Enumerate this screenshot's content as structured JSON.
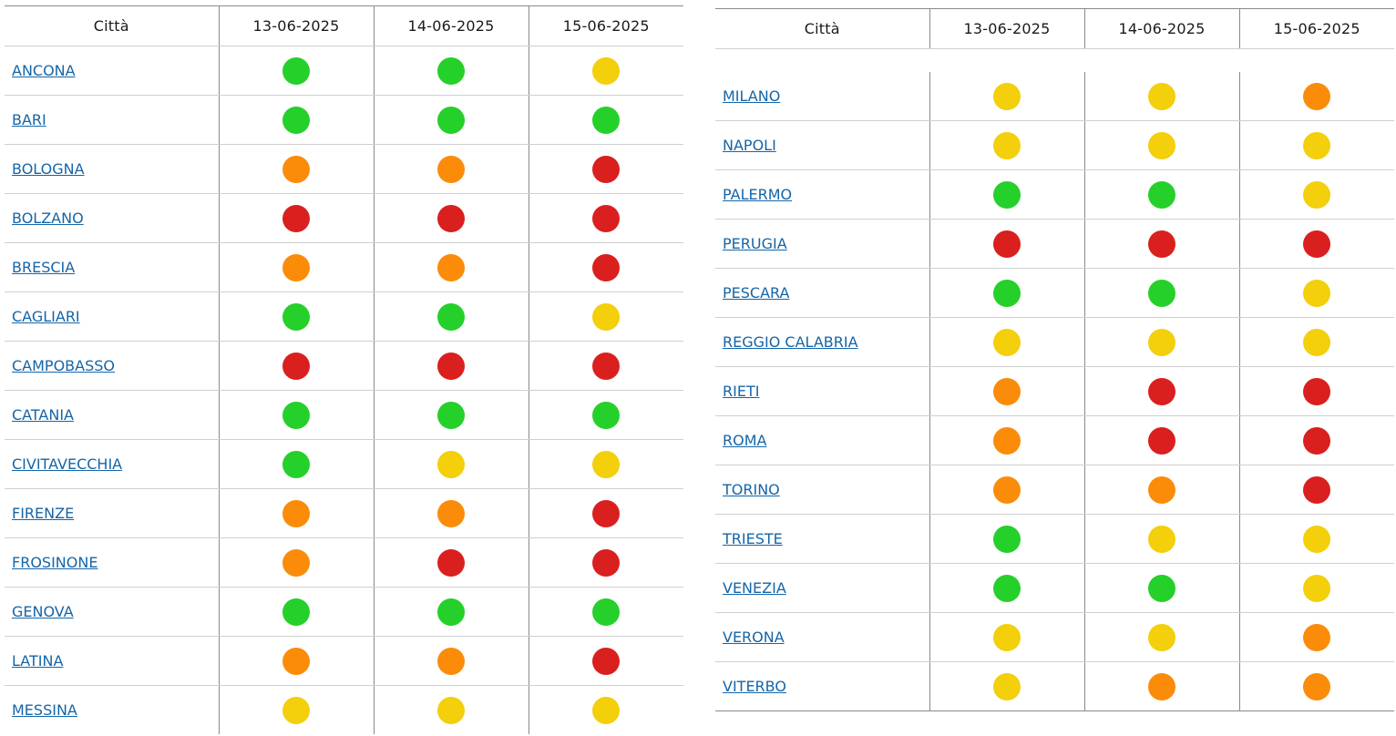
{
  "colors": {
    "green": "#25d02a",
    "yellow": "#f3cf0c",
    "orange": "#fb8c0a",
    "red": "#da1f1f"
  },
  "tables": [
    {
      "headers": [
        "Città",
        "13-06-2025",
        "14-06-2025",
        "15-06-2025"
      ],
      "rows": [
        {
          "city": "ANCONA",
          "levels": [
            "green",
            "green",
            "yellow"
          ]
        },
        {
          "city": "BARI",
          "levels": [
            "green",
            "green",
            "green"
          ]
        },
        {
          "city": "BOLOGNA",
          "levels": [
            "orange",
            "orange",
            "red"
          ]
        },
        {
          "city": "BOLZANO",
          "levels": [
            "red",
            "red",
            "red"
          ]
        },
        {
          "city": "BRESCIA",
          "levels": [
            "orange",
            "orange",
            "red"
          ]
        },
        {
          "city": "CAGLIARI",
          "levels": [
            "green",
            "green",
            "yellow"
          ]
        },
        {
          "city": "CAMPOBASSO",
          "levels": [
            "red",
            "red",
            "red"
          ]
        },
        {
          "city": "CATANIA",
          "levels": [
            "green",
            "green",
            "green"
          ]
        },
        {
          "city": "CIVITAVECCHIA",
          "levels": [
            "green",
            "yellow",
            "yellow"
          ]
        },
        {
          "city": "FIRENZE",
          "levels": [
            "orange",
            "orange",
            "red"
          ]
        },
        {
          "city": "FROSINONE",
          "levels": [
            "orange",
            "red",
            "red"
          ]
        },
        {
          "city": "GENOVA",
          "levels": [
            "green",
            "green",
            "green"
          ]
        },
        {
          "city": "LATINA",
          "levels": [
            "orange",
            "orange",
            "red"
          ]
        },
        {
          "city": "MESSINA",
          "levels": [
            "yellow",
            "yellow",
            "yellow"
          ]
        }
      ]
    },
    {
      "headers": [
        "Città",
        "13-06-2025",
        "14-06-2025",
        "15-06-2025"
      ],
      "rows": [
        {
          "city": "MILANO",
          "levels": [
            "yellow",
            "yellow",
            "orange"
          ]
        },
        {
          "city": "NAPOLI",
          "levels": [
            "yellow",
            "yellow",
            "yellow"
          ]
        },
        {
          "city": "PALERMO",
          "levels": [
            "green",
            "green",
            "yellow"
          ]
        },
        {
          "city": "PERUGIA",
          "levels": [
            "red",
            "red",
            "red"
          ]
        },
        {
          "city": "PESCARA",
          "levels": [
            "green",
            "green",
            "yellow"
          ]
        },
        {
          "city": "REGGIO CALABRIA",
          "levels": [
            "yellow",
            "yellow",
            "yellow"
          ]
        },
        {
          "city": "RIETI",
          "levels": [
            "orange",
            "red",
            "red"
          ]
        },
        {
          "city": "ROMA",
          "levels": [
            "orange",
            "red",
            "red"
          ]
        },
        {
          "city": "TORINO",
          "levels": [
            "orange",
            "orange",
            "red"
          ]
        },
        {
          "city": "TRIESTE",
          "levels": [
            "green",
            "yellow",
            "yellow"
          ]
        },
        {
          "city": "VENEZIA",
          "levels": [
            "green",
            "green",
            "yellow"
          ]
        },
        {
          "city": "VERONA",
          "levels": [
            "yellow",
            "yellow",
            "orange"
          ]
        },
        {
          "city": "VITERBO",
          "levels": [
            "yellow",
            "orange",
            "orange"
          ]
        }
      ]
    }
  ]
}
